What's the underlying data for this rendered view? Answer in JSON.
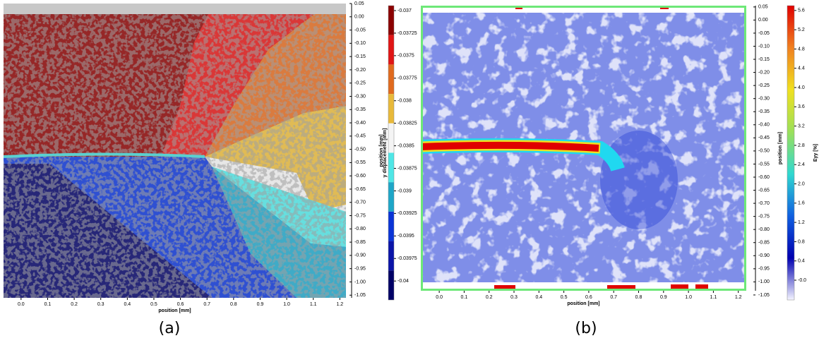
{
  "chart_data": [
    {
      "type": "image",
      "caption": "(a)",
      "x_label": "position [mm]",
      "y_label": "position [mm]",
      "xlim": [
        -0.066,
        1.223
      ],
      "xticks": [
        {
          "value": 0,
          "label": "0.0"
        },
        0.1,
        0.2,
        0.3,
        0.4,
        0.5,
        0.6,
        0.7,
        0.8,
        0.9,
        {
          "value": 1,
          "label": "1.0"
        },
        1.1,
        1.2
      ],
      "ylim": [
        -1.06,
        0.05
      ],
      "yticks": [
        0.05,
        {
          "value": 0,
          "label": "0.00"
        },
        -0.05,
        {
          "value": -0.1,
          "label": "-0.10"
        },
        -0.15,
        {
          "value": -0.2,
          "label": "-0.20"
        },
        -0.25,
        {
          "value": -0.3,
          "label": "-0.30"
        },
        -0.35,
        {
          "value": -0.4,
          "label": "-0.40"
        },
        -0.45,
        {
          "value": -0.5,
          "label": "-0.50"
        },
        -0.55,
        {
          "value": -0.6,
          "label": "-0.60"
        },
        -0.65,
        {
          "value": -0.7,
          "label": "-0.70"
        },
        -0.75,
        {
          "value": -0.8,
          "label": "-0.80"
        },
        -0.85,
        {
          "value": -0.9,
          "label": "-0.90"
        },
        -0.95,
        {
          "value": -1,
          "label": "-1.00"
        },
        -1.05
      ],
      "colorbar": {
        "label": "y displacement [mm]",
        "lim": [
          -0.04021,
          -0.036945
        ],
        "ticks": [
          -0.037,
          -0.03725,
          -0.0375,
          -0.03775,
          -0.038,
          -0.03825,
          -0.0385,
          -0.03875,
          -0.039,
          -0.03925,
          -0.0395,
          -0.03975,
          -0.04
        ],
        "colors": [
          "#8b0000",
          "#e01515",
          "#e06a1e",
          "#e8b93a",
          "#f4f4f4",
          "#4fe6e6",
          "#1ea6c8",
          "#0a34d6",
          "#0a14a8",
          "#000066"
        ]
      }
    },
    {
      "type": "image",
      "caption": "(b)",
      "x_label": "position [mm]",
      "y_label": "position [mm]",
      "xlim": [
        -0.074,
        1.232
      ],
      "xticks": [
        {
          "value": 0,
          "label": "0.0"
        },
        0.1,
        0.2,
        0.3,
        0.4,
        0.5,
        0.6,
        0.7,
        0.8,
        0.9,
        {
          "value": 1,
          "label": "1.0"
        },
        1.1,
        1.2
      ],
      "ylim": [
        -1.034,
        0.055
      ],
      "yticks": [
        0.05,
        {
          "value": 0,
          "label": "0.00"
        },
        -0.05,
        {
          "value": -0.1,
          "label": "-0.10"
        },
        -0.15,
        {
          "value": -0.2,
          "label": "-0.20"
        },
        -0.25,
        {
          "value": -0.3,
          "label": "-0.30"
        },
        -0.35,
        {
          "value": -0.4,
          "label": "-0.40"
        },
        -0.45,
        {
          "value": -0.5,
          "label": "-0.50"
        },
        -0.55,
        {
          "value": -0.6,
          "label": "-0.60"
        },
        -0.65,
        {
          "value": -0.7,
          "label": "-0.70"
        },
        -0.75,
        {
          "value": -0.8,
          "label": "-0.80"
        },
        -0.85,
        {
          "value": -0.9,
          "label": "-0.90"
        },
        -0.95,
        {
          "value": -1,
          "label": "-1.00"
        },
        -1.05
      ],
      "colorbar": {
        "label": "Eyy [%]",
        "lim": [
          -0.41,
          5.7
        ],
        "ticks": [
          5.6,
          5.2,
          4.8,
          4.4,
          {
            "value": 4,
            "label": "4.0"
          },
          3.6,
          3.2,
          2.8,
          2.4,
          {
            "value": 2,
            "label": "2.0"
          },
          1.6,
          1.2,
          0.8,
          0.4,
          {
            "value": 0,
            "label": "-0.0"
          }
        ],
        "colors": [
          "#e00000",
          "#f08020",
          "#f0e020",
          "#9be05a",
          "#30d8d0",
          "#1060e0",
          "#0000b0",
          "#f4f4ff"
        ]
      }
    }
  ]
}
